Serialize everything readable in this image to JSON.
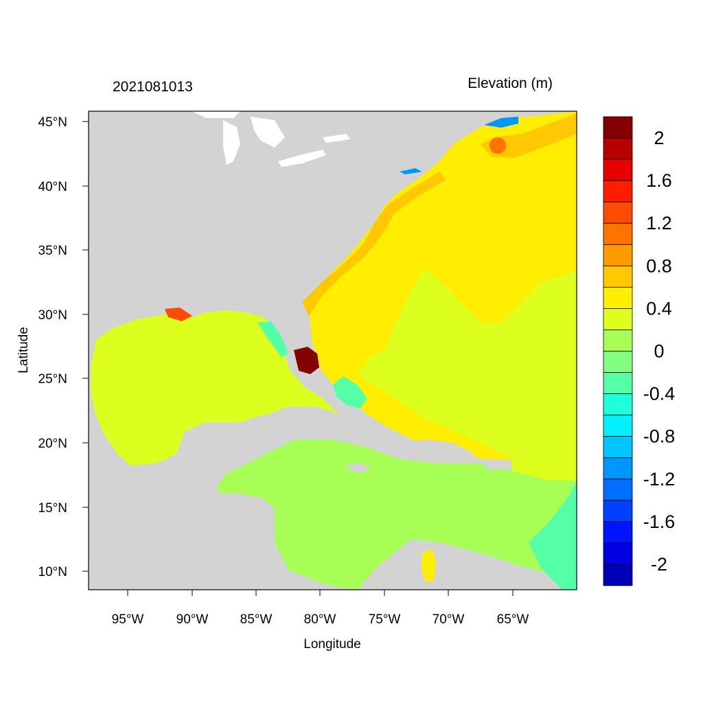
{
  "plot": {
    "left_title": "2021081013",
    "right_title": "Elevation (m)",
    "xlabel": "Longitude",
    "ylabel": "Latitude"
  },
  "axes": {
    "x_ticks": [
      "95°W",
      "90°W",
      "85°W",
      "80°W",
      "75°W",
      "70°W",
      "65°W"
    ],
    "y_ticks": [
      "45°N",
      "40°N",
      "35°N",
      "30°N",
      "25°N",
      "20°N",
      "15°N",
      "10°N"
    ],
    "x_range": [
      "-98°",
      "-60.5°"
    ],
    "y_range": [
      "8.5°",
      "45.8°"
    ]
  },
  "colorbar": {
    "labels": [
      "2",
      "1.6",
      "1.2",
      "0.8",
      "0.4",
      "0",
      "-0.4",
      "-0.8",
      "-1.2",
      "-1.6",
      "-2"
    ],
    "colors": [
      "#850000",
      "#b90000",
      "#e60000",
      "#ff1e00",
      "#ff4b00",
      "#ff7300",
      "#ff9b00",
      "#ffc800",
      "#ffee00",
      "#dcff1e",
      "#a7ff55",
      "#80ff80",
      "#55ffa7",
      "#1effdc",
      "#00f0ff",
      "#00c3ff",
      "#0096ff",
      "#006eff",
      "#0041ff",
      "#0014ff",
      "#0000e1",
      "#0000b4"
    ]
  },
  "map": {
    "land_color": "#d3d3d3",
    "water_colors": {
      "gulf": "#dcff1e",
      "atlantic": "#ffee00",
      "caribbean": "#a7ff55",
      "surge_high": "#850000",
      "shelf_orange": "#ffc800",
      "deep_negative": "#55ffa7"
    }
  }
}
